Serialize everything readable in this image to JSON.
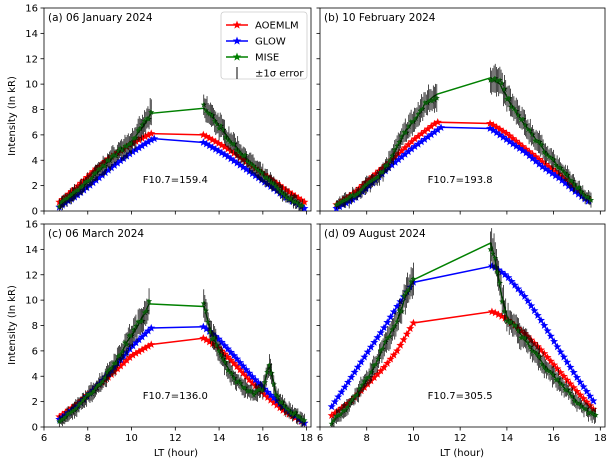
{
  "figure": {
    "xlabel": "LT (hour)",
    "ylabel": "Intensity (In kR)"
  },
  "legend": {
    "placement": "top-right of panel (a)",
    "entries": [
      {
        "label": "AOEMLM",
        "color": "#ff0000",
        "marker": "star"
      },
      {
        "label": "GLOW",
        "color": "#0000ff",
        "marker": "star"
      },
      {
        "label": "MISE",
        "color": "#008000",
        "marker": "star"
      },
      {
        "label": "±1σ error",
        "color": "#000000",
        "marker": "errorbar"
      }
    ]
  },
  "chart_data": [
    {
      "type": "line",
      "title": "(a) 06 January 2024",
      "annotation": "F10.7=159.4",
      "xlim": [
        6,
        18.2
      ],
      "ylim": [
        0,
        16
      ],
      "xticks": [
        "6",
        "8",
        "10",
        "12",
        "14",
        "16",
        "18"
      ],
      "yticks": [
        "0",
        "2",
        "4",
        "6",
        "8",
        "10",
        "12",
        "14",
        "16"
      ],
      "series": [
        {
          "name": "AOEMLM",
          "color": "#ff0000",
          "x": [
            6.7,
            7.5,
            8.3,
            9.0,
            10.0,
            10.9,
            13.3,
            14.3,
            15.3,
            16.3,
            17.1,
            17.9
          ],
          "y": [
            0.7,
            1.9,
            3.2,
            4.2,
            5.3,
            6.1,
            6.0,
            5.0,
            3.8,
            2.6,
            1.6,
            0.7
          ]
        },
        {
          "name": "GLOW",
          "color": "#0000ff",
          "x": [
            6.7,
            7.5,
            8.3,
            9.0,
            10.0,
            11.0,
            13.3,
            14.3,
            15.3,
            16.3,
            17.1,
            17.9
          ],
          "y": [
            0.3,
            1.2,
            2.3,
            3.3,
            4.6,
            5.7,
            5.4,
            4.4,
            3.2,
            2.0,
            1.0,
            0.2
          ]
        },
        {
          "name": "MISE",
          "color": "#008000",
          "x": [
            6.7,
            7.3,
            8.0,
            8.7,
            9.3,
            10.0,
            10.5,
            10.9,
            13.3,
            13.8,
            14.4,
            15.0,
            15.6,
            16.2,
            16.8,
            17.3,
            17.8
          ],
          "y": [
            0.5,
            1.2,
            2.3,
            3.5,
            4.5,
            5.5,
            6.6,
            7.7,
            8.1,
            7.2,
            5.8,
            4.6,
            3.5,
            2.5,
            1.6,
            0.9,
            0.4
          ]
        }
      ]
    },
    {
      "type": "line",
      "title": "(b) 10 February 2024",
      "annotation": "F10.7=193.8",
      "xlim": [
        6,
        18.2
      ],
      "ylim": [
        0,
        16
      ],
      "xticks": [
        "6",
        "8",
        "10",
        "12",
        "14",
        "16",
        "18"
      ],
      "yticks": [
        "0",
        "2",
        "4",
        "6",
        "8",
        "10",
        "12",
        "14",
        "16"
      ],
      "series": [
        {
          "name": "AOEMLM",
          "color": "#ff0000",
          "x": [
            6.7,
            7.5,
            8.3,
            9.0,
            10.0,
            11.0,
            13.3,
            14.0,
            14.8,
            15.5,
            16.3,
            17.0,
            17.6
          ],
          "y": [
            0.5,
            1.5,
            2.8,
            3.9,
            5.6,
            7.0,
            6.9,
            6.1,
            4.9,
            3.9,
            2.8,
            1.6,
            0.8
          ]
        },
        {
          "name": "GLOW",
          "color": "#0000ff",
          "x": [
            6.7,
            7.5,
            8.3,
            9.0,
            10.0,
            11.2,
            13.3,
            14.0,
            14.8,
            15.5,
            16.3,
            17.0,
            17.6
          ],
          "y": [
            0.2,
            1.0,
            2.3,
            3.5,
            5.0,
            6.6,
            6.5,
            5.6,
            4.6,
            3.5,
            2.5,
            1.4,
            0.6
          ]
        },
        {
          "name": "MISE",
          "color": "#008000",
          "x": [
            6.7,
            7.3,
            8.0,
            8.7,
            9.3,
            9.7,
            10.2,
            10.5,
            11.0,
            13.3,
            13.7,
            14.3,
            15.0,
            15.6,
            16.2,
            16.8,
            17.3,
            17.6
          ],
          "y": [
            0.4,
            1.0,
            2.0,
            3.1,
            5.0,
            6.4,
            7.5,
            8.5,
            9.2,
            10.5,
            10.0,
            8.0,
            6.2,
            4.8,
            3.5,
            2.3,
            1.3,
            0.8
          ]
        }
      ]
    },
    {
      "type": "line",
      "title": "(c) 06 March 2024",
      "annotation": "F10.7=136.0",
      "xlim": [
        6,
        18.2
      ],
      "ylim": [
        0,
        16
      ],
      "xticks": [
        "6",
        "8",
        "10",
        "12",
        "14",
        "16",
        "18"
      ],
      "yticks": [
        "0",
        "2",
        "4",
        "6",
        "8",
        "10",
        "12",
        "14",
        "16"
      ],
      "series": [
        {
          "name": "AOEMLM",
          "color": "#ff0000",
          "x": [
            6.7,
            7.5,
            8.3,
            9.0,
            10.0,
            10.9,
            13.3,
            14.0,
            14.8,
            15.5,
            16.3,
            17.0,
            17.9
          ],
          "y": [
            0.8,
            1.8,
            3.0,
            4.0,
            5.6,
            6.5,
            7.0,
            6.2,
            4.8,
            3.5,
            2.2,
            1.2,
            0.3
          ]
        },
        {
          "name": "GLOW",
          "color": "#0000ff",
          "x": [
            6.7,
            7.5,
            8.3,
            9.0,
            10.0,
            10.9,
            13.3,
            14.0,
            14.8,
            15.5,
            16.3,
            17.0,
            17.9
          ],
          "y": [
            0.6,
            1.6,
            3.0,
            4.3,
            6.3,
            7.8,
            7.9,
            6.9,
            5.4,
            4.0,
            2.6,
            1.5,
            0.3
          ]
        },
        {
          "name": "MISE",
          "color": "#008000",
          "x": [
            6.7,
            7.3,
            8.0,
            8.7,
            9.3,
            9.8,
            10.3,
            10.8,
            13.3,
            13.7,
            14.2,
            14.7,
            15.2,
            15.6,
            16.0,
            16.3,
            16.6,
            17.0,
            17.5,
            17.9
          ],
          "y": [
            0.5,
            1.2,
            2.4,
            3.7,
            5.2,
            6.7,
            8.0,
            9.7,
            9.5,
            7.2,
            5.2,
            3.8,
            3.0,
            2.6,
            3.0,
            4.9,
            2.5,
            1.6,
            1.0,
            0.4
          ]
        }
      ]
    },
    {
      "type": "line",
      "title": "(d) 09 August 2024",
      "annotation": "F10.7=305.5",
      "xlim": [
        6,
        18.2
      ],
      "ylim": [
        0,
        16
      ],
      "xticks": [
        "6",
        "8",
        "10",
        "12",
        "14",
        "16",
        "18"
      ],
      "yticks": [
        "0",
        "2",
        "4",
        "6",
        "8",
        "10",
        "12",
        "14",
        "16"
      ],
      "series": [
        {
          "name": "AOEMLM",
          "color": "#ff0000",
          "x": [
            6.5,
            7.3,
            8.0,
            8.7,
            9.3,
            10.0,
            13.4,
            14.0,
            14.8,
            15.5,
            16.2,
            17.0,
            17.8
          ],
          "y": [
            0.9,
            2.0,
            3.3,
            4.6,
            6.0,
            8.2,
            9.1,
            8.5,
            7.3,
            6.0,
            4.5,
            2.8,
            1.2
          ]
        },
        {
          "name": "GLOW",
          "color": "#0000ff",
          "x": [
            6.5,
            7.3,
            8.0,
            8.7,
            9.3,
            10.0,
            13.4,
            14.0,
            14.8,
            15.5,
            16.2,
            17.0,
            17.8
          ],
          "y": [
            1.6,
            3.8,
            5.8,
            7.7,
            9.5,
            11.4,
            12.7,
            11.9,
            10.2,
            8.3,
            6.2,
            3.9,
            1.8
          ]
        },
        {
          "name": "MISE",
          "color": "#008000",
          "x": [
            6.5,
            7.0,
            7.5,
            8.0,
            8.4,
            8.8,
            9.3,
            9.7,
            10.0,
            13.3,
            13.5,
            13.7,
            14.0,
            14.5,
            15.0,
            15.5,
            16.0,
            16.5,
            17.0,
            17.5,
            17.8
          ],
          "y": [
            0.4,
            1.2,
            2.4,
            3.7,
            5.0,
            6.7,
            8.3,
            10.5,
            11.6,
            14.5,
            13.2,
            11.0,
            8.7,
            7.5,
            6.3,
            5.1,
            4.0,
            3.0,
            2.0,
            1.2,
            0.8
          ]
        }
      ]
    }
  ]
}
